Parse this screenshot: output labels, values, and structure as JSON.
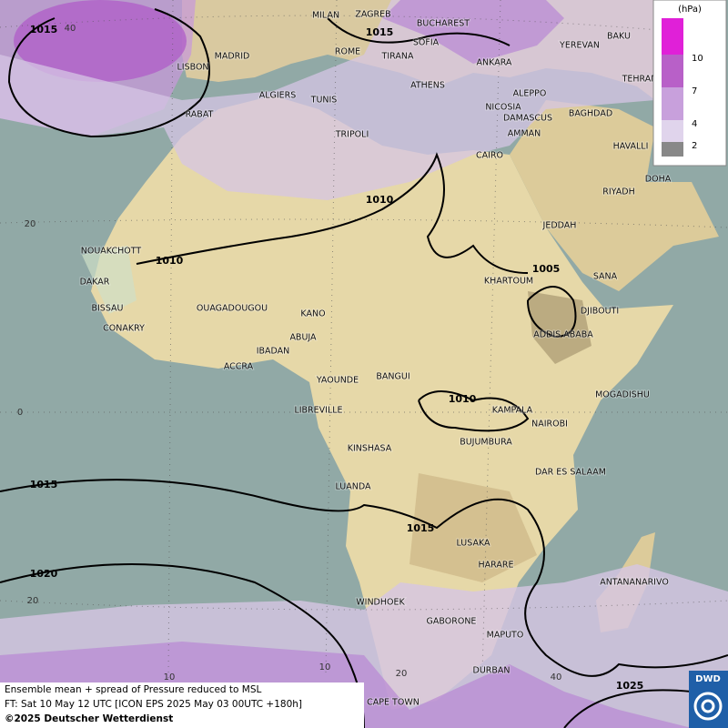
{
  "map": {
    "cities": [
      "MILAN",
      "ZAGREB",
      "BUCHAREST",
      "MADRID",
      "ROME",
      "SOFIA",
      "YEREVAN",
      "BAKU",
      "LISBON",
      "TIRANA",
      "ANKARA",
      "TEHRAN",
      "ALGIERS",
      "TUNIS",
      "ATHENS",
      "ALEPPO",
      "RABAT",
      "NICOSIA",
      "BAGHDAD",
      "TRIPOLI",
      "DAMASCUS",
      "AMMAN",
      "HAVALLI",
      "CAIRO",
      "DOHA",
      "RIYADH",
      "JEDDAH",
      "NOUAKCHOTT",
      "DAKAR",
      "SANA",
      "KHARTOUM",
      "BISSAU",
      "OUAGADOUGOU",
      "KANO",
      "DJIBOUTI",
      "CONAKRY",
      "ABUJA",
      "ADDIS ABABA",
      "IBADAN",
      "ACCRA",
      "YAOUNDE",
      "BANGUI",
      "MOGADISHU",
      "LIBREVILLE",
      "KAMPALA",
      "NAIROBI",
      "BUJUMBURA",
      "KINSHASA",
      "DAR ES SALAAM",
      "LUANDA",
      "LUSAKA",
      "HARARE",
      "ANTANANARIVO",
      "WINDHOEK",
      "GABORONE",
      "MAPUTO",
      "DURBAN",
      "CAPE TOWN"
    ],
    "isobar_labels": [
      "1015",
      "1015",
      "1010",
      "1010",
      "1005",
      "1010",
      "1015",
      "1015",
      "1020",
      "1025"
    ],
    "graticule_labels": [
      "40",
      "20",
      "0",
      "20",
      "10",
      "10",
      "20",
      "40"
    ],
    "legend": {
      "title": "(hPa)",
      "labels": [
        "10",
        "7",
        "4",
        "2"
      ]
    },
    "footer": [
      "Ensemble mean + spread of Pressure reduced to MSL",
      "FT: Sat 10 May 12 UTC [ICON EPS 2025 May 03 00UTC +180h]",
      "©2025 Deutscher Wetterdienst"
    ],
    "logo": "DWD"
  }
}
